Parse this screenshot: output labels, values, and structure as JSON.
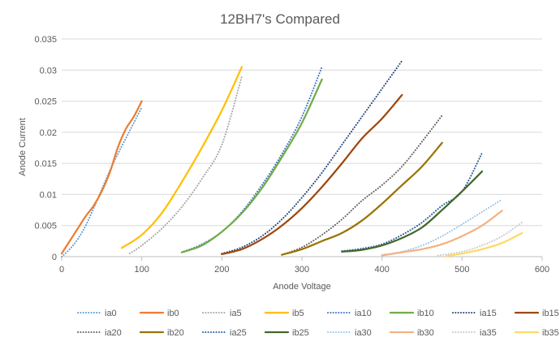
{
  "chart_data": {
    "type": "line",
    "title": "12BH7's Compared",
    "xlabel": "Anode Voltage",
    "ylabel": "Anode Current",
    "xlim": [
      0,
      600
    ],
    "ylim": [
      0,
      0.035
    ],
    "xticks": [
      0,
      100,
      200,
      300,
      400,
      500,
      600
    ],
    "yticks": [
      0,
      0.005,
      0.01,
      0.015,
      0.02,
      0.025,
      0.03,
      0.035
    ],
    "xtick_labels": [
      "0",
      "100",
      "200",
      "300",
      "400",
      "500",
      "600"
    ],
    "ytick_labels": [
      "0",
      "0.005",
      "0.01",
      "0.015",
      "0.02",
      "0.025",
      "0.03",
      "0.035"
    ],
    "grid": "horizontal",
    "legend_position": "bottom",
    "series": [
      {
        "name": "ia0",
        "color": "#5b9bd5",
        "dash": "dotted",
        "points": [
          [
            0,
            0
          ],
          [
            10,
            0.0012
          ],
          [
            20,
            0.0028
          ],
          [
            30,
            0.005
          ],
          [
            40,
            0.0078
          ],
          [
            50,
            0.0108
          ],
          [
            60,
            0.0138
          ],
          [
            70,
            0.0165
          ],
          [
            80,
            0.019
          ],
          [
            90,
            0.0215
          ],
          [
            100,
            0.024
          ]
        ]
      },
      {
        "name": "ib0",
        "color": "#ed7d31",
        "dash": "solid",
        "points": [
          [
            0,
            0.0005
          ],
          [
            10,
            0.0025
          ],
          [
            20,
            0.0045
          ],
          [
            30,
            0.0065
          ],
          [
            40,
            0.0082
          ],
          [
            50,
            0.0105
          ],
          [
            60,
            0.0135
          ],
          [
            70,
            0.0175
          ],
          [
            80,
            0.0205
          ],
          [
            90,
            0.0225
          ],
          [
            100,
            0.025
          ]
        ]
      },
      {
        "name": "ia5",
        "color": "#a5a5a5",
        "dash": "dotted",
        "points": [
          [
            85,
            0.0005
          ],
          [
            100,
            0.0018
          ],
          [
            125,
            0.0045
          ],
          [
            150,
            0.008
          ],
          [
            175,
            0.0125
          ],
          [
            200,
            0.018
          ],
          [
            225,
            0.029
          ]
        ]
      },
      {
        "name": "ib5",
        "color": "#ffc000",
        "dash": "solid",
        "points": [
          [
            75,
            0.0014
          ],
          [
            100,
            0.0035
          ],
          [
            125,
            0.007
          ],
          [
            150,
            0.012
          ],
          [
            175,
            0.0175
          ],
          [
            200,
            0.0235
          ],
          [
            225,
            0.0305
          ]
        ]
      },
      {
        "name": "ia10",
        "color": "#4472c4",
        "dash": "dotted",
        "points": [
          [
            150,
            0.0007
          ],
          [
            175,
            0.002
          ],
          [
            200,
            0.004
          ],
          [
            225,
            0.0072
          ],
          [
            250,
            0.0115
          ],
          [
            275,
            0.0165
          ],
          [
            300,
            0.0225
          ],
          [
            325,
            0.0305
          ]
        ]
      },
      {
        "name": "ib10",
        "color": "#70ad47",
        "dash": "solid",
        "points": [
          [
            150,
            0.0007
          ],
          [
            175,
            0.0018
          ],
          [
            200,
            0.004
          ],
          [
            225,
            0.007
          ],
          [
            250,
            0.011
          ],
          [
            275,
            0.016
          ],
          [
            300,
            0.0215
          ],
          [
            325,
            0.0285
          ]
        ]
      },
      {
        "name": "ia15",
        "color": "#264478",
        "dash": "dotted",
        "points": [
          [
            200,
            0.0005
          ],
          [
            225,
            0.0015
          ],
          [
            250,
            0.0033
          ],
          [
            275,
            0.006
          ],
          [
            300,
            0.0095
          ],
          [
            325,
            0.0135
          ],
          [
            350,
            0.018
          ],
          [
            375,
            0.0225
          ],
          [
            400,
            0.027
          ],
          [
            425,
            0.0315
          ]
        ]
      },
      {
        "name": "ib15",
        "color": "#9e480e",
        "dash": "solid",
        "points": [
          [
            200,
            0.0004
          ],
          [
            225,
            0.0012
          ],
          [
            250,
            0.0028
          ],
          [
            275,
            0.005
          ],
          [
            300,
            0.0078
          ],
          [
            325,
            0.0112
          ],
          [
            350,
            0.015
          ],
          [
            375,
            0.019
          ],
          [
            400,
            0.0222
          ],
          [
            425,
            0.026
          ]
        ]
      },
      {
        "name": "ia20",
        "color": "#636363",
        "dash": "dotted",
        "points": [
          [
            275,
            0.0003
          ],
          [
            300,
            0.0015
          ],
          [
            325,
            0.0035
          ],
          [
            350,
            0.006
          ],
          [
            375,
            0.009
          ],
          [
            400,
            0.0115
          ],
          [
            425,
            0.0145
          ],
          [
            450,
            0.0185
          ],
          [
            475,
            0.0227
          ]
        ]
      },
      {
        "name": "ib20",
        "color": "#997300",
        "dash": "solid",
        "points": [
          [
            275,
            0.0003
          ],
          [
            300,
            0.0012
          ],
          [
            325,
            0.0025
          ],
          [
            350,
            0.0038
          ],
          [
            375,
            0.0058
          ],
          [
            400,
            0.0085
          ],
          [
            425,
            0.0115
          ],
          [
            450,
            0.0145
          ],
          [
            475,
            0.0183
          ]
        ]
      },
      {
        "name": "ia25",
        "color": "#255e91",
        "dash": "dotted",
        "points": [
          [
            350,
            0.0009
          ],
          [
            375,
            0.0013
          ],
          [
            400,
            0.002
          ],
          [
            425,
            0.0035
          ],
          [
            450,
            0.0055
          ],
          [
            475,
            0.0082
          ],
          [
            500,
            0.0105
          ],
          [
            525,
            0.0167
          ]
        ]
      },
      {
        "name": "ib25",
        "color": "#43682b",
        "dash": "solid",
        "points": [
          [
            350,
            0.0008
          ],
          [
            375,
            0.0011
          ],
          [
            400,
            0.0018
          ],
          [
            425,
            0.003
          ],
          [
            450,
            0.0047
          ],
          [
            475,
            0.0075
          ],
          [
            500,
            0.0105
          ],
          [
            525,
            0.0137
          ]
        ]
      },
      {
        "name": "ia30",
        "color": "#9dc3e6",
        "dash": "dotted",
        "points": [
          [
            400,
            0.0003
          ],
          [
            425,
            0.0008
          ],
          [
            450,
            0.0018
          ],
          [
            475,
            0.0033
          ],
          [
            500,
            0.0052
          ],
          [
            525,
            0.0072
          ],
          [
            550,
            0.0092
          ]
        ]
      },
      {
        "name": "ib30",
        "color": "#f4b183",
        "dash": "solid",
        "points": [
          [
            400,
            0.0002
          ],
          [
            425,
            0.0007
          ],
          [
            450,
            0.0012
          ],
          [
            475,
            0.002
          ],
          [
            500,
            0.0033
          ],
          [
            525,
            0.005
          ],
          [
            550,
            0.0074
          ]
        ]
      },
      {
        "name": "ia35",
        "color": "#c9c9c9",
        "dash": "dotted",
        "points": [
          [
            470,
            0.0002
          ],
          [
            500,
            0.0008
          ],
          [
            525,
            0.0018
          ],
          [
            550,
            0.0033
          ],
          [
            575,
            0.0055
          ]
        ]
      },
      {
        "name": "ib35",
        "color": "#ffd966",
        "dash": "solid",
        "points": [
          [
            480,
            0.0001
          ],
          [
            500,
            0.0005
          ],
          [
            525,
            0.0012
          ],
          [
            550,
            0.0022
          ],
          [
            575,
            0.0038
          ]
        ]
      }
    ]
  }
}
